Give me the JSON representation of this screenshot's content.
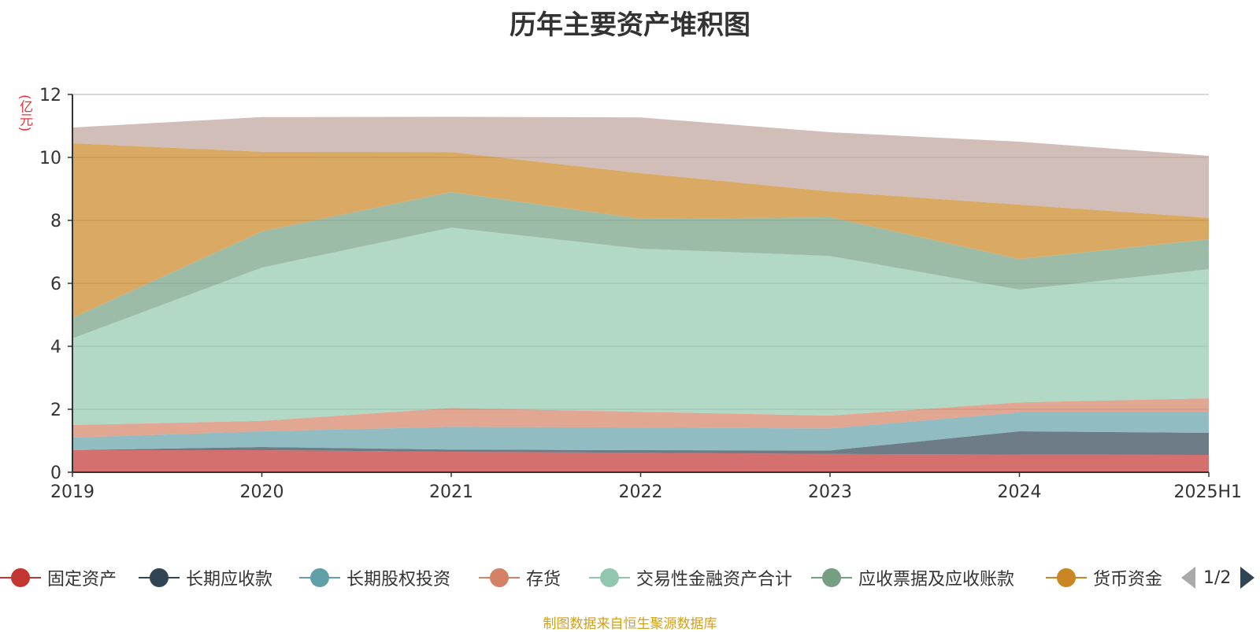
{
  "chart_data": {
    "type": "area",
    "stacked": true,
    "title": "历年主要资产堆积图",
    "unit_label": "(亿元)",
    "categories": [
      "2019",
      "2020",
      "2021",
      "2022",
      "2023",
      "2024",
      "2025H1"
    ],
    "ylim": [
      0,
      12
    ],
    "yticks": [
      0,
      2,
      4,
      6,
      8,
      10,
      12
    ],
    "grid": true,
    "legend_position": "bottom",
    "series": [
      {
        "name": "固定资产",
        "color": "#c23531",
        "values": [
          0.7,
          0.7,
          0.65,
          0.62,
          0.58,
          0.56,
          0.55
        ]
      },
      {
        "name": "长期应收款",
        "color": "#2f4554",
        "values": [
          0.0,
          0.1,
          0.07,
          0.08,
          0.11,
          0.74,
          0.7
        ]
      },
      {
        "name": "长期股权投资",
        "color": "#61a0a8",
        "values": [
          0.4,
          0.5,
          0.72,
          0.72,
          0.7,
          0.6,
          0.65
        ]
      },
      {
        "name": "存货",
        "color": "#d48265",
        "values": [
          0.4,
          0.33,
          0.6,
          0.5,
          0.41,
          0.32,
          0.45
        ]
      },
      {
        "name": "交易性金融资产合计",
        "color": "#91c7ae",
        "values": [
          2.75,
          4.87,
          5.73,
          5.18,
          5.07,
          3.58,
          4.1
        ]
      },
      {
        "name": "应收票据及应收账款",
        "color": "#749f83",
        "values": [
          0.65,
          1.15,
          1.13,
          0.95,
          1.23,
          0.97,
          0.95
        ]
      },
      {
        "name": "货币资金",
        "color": "#ca8622",
        "values": [
          5.55,
          2.53,
          1.27,
          1.45,
          0.82,
          1.73,
          0.68
        ]
      },
      {
        "name": "",
        "color": "#bda29a",
        "values": [
          0.5,
          1.1,
          1.12,
          1.77,
          1.88,
          2.0,
          1.97
        ]
      }
    ]
  },
  "legend": {
    "page_indicator": "1/2"
  },
  "footer": {
    "source": "制图数据来自恒生聚源数据库"
  }
}
